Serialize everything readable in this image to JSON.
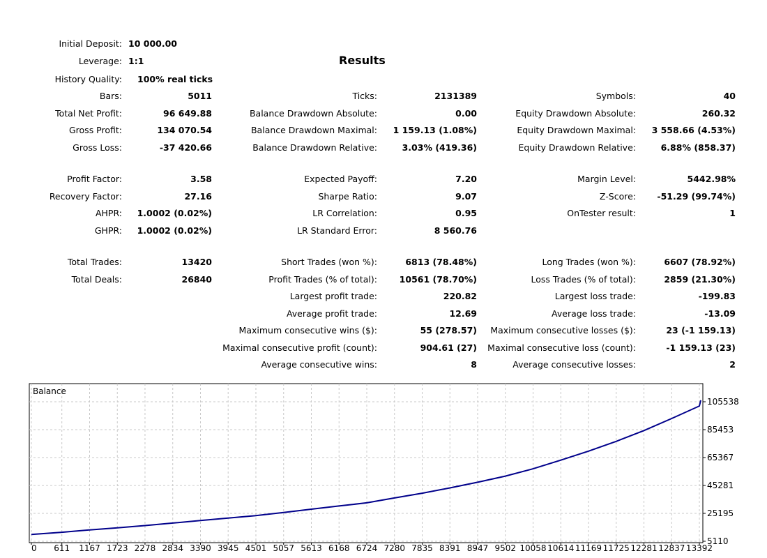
{
  "header": {
    "initial_deposit_label": "Initial Deposit:",
    "initial_deposit": "10 000.00",
    "leverage_label": "Leverage:",
    "leverage": "1:1",
    "history_quality_label": "History Quality:",
    "history_quality": "100% real ticks",
    "results_title": "Results"
  },
  "stats": {
    "bars_label": "Bars:",
    "bars": "5011",
    "ticks_label": "Ticks:",
    "ticks": "2131389",
    "symbols_label": "Symbols:",
    "symbols": "40",
    "net_profit_label": "Total Net Profit:",
    "net_profit": "96 649.88",
    "bal_dd_abs_label": "Balance Drawdown Absolute:",
    "bal_dd_abs": "0.00",
    "eq_dd_abs_label": "Equity Drawdown Absolute:",
    "eq_dd_abs": "260.32",
    "gross_profit_label": "Gross Profit:",
    "gross_profit": "134 070.54",
    "bal_dd_max_label": "Balance Drawdown Maximal:",
    "bal_dd_max": "1 159.13 (1.08%)",
    "eq_dd_max_label": "Equity Drawdown Maximal:",
    "eq_dd_max": "3 558.66 (4.53%)",
    "gross_loss_label": "Gross Loss:",
    "gross_loss": "-37 420.66",
    "bal_dd_rel_label": "Balance Drawdown Relative:",
    "bal_dd_rel": "3.03% (419.36)",
    "eq_dd_rel_label": "Equity Drawdown Relative:",
    "eq_dd_rel": "6.88% (858.37)",
    "profit_factor_label": "Profit Factor:",
    "profit_factor": "3.58",
    "expected_payoff_label": "Expected Payoff:",
    "expected_payoff": "7.20",
    "margin_level_label": "Margin Level:",
    "margin_level": "5442.98%",
    "recovery_factor_label": "Recovery Factor:",
    "recovery_factor": "27.16",
    "sharpe_label": "Sharpe Ratio:",
    "sharpe": "9.07",
    "zscore_label": "Z-Score:",
    "zscore": "-51.29 (99.74%)",
    "ahpr_label": "AHPR:",
    "ahpr": "1.0002 (0.02%)",
    "lr_corr_label": "LR Correlation:",
    "lr_corr": "0.95",
    "ontester_label": "OnTester result:",
    "ontester": "1",
    "ghpr_label": "GHPR:",
    "ghpr": "1.0002 (0.02%)",
    "lr_se_label": "LR Standard Error:",
    "lr_se": "8 560.76",
    "total_trades_label": "Total Trades:",
    "total_trades": "13420",
    "short_trades_label": "Short Trades (won %):",
    "short_trades": "6813 (78.48%)",
    "long_trades_label": "Long Trades (won %):",
    "long_trades": "6607 (78.92%)",
    "total_deals_label": "Total Deals:",
    "total_deals": "26840",
    "profit_trades_label": "Profit Trades (% of total):",
    "profit_trades": "10561 (78.70%)",
    "loss_trades_label": "Loss Trades (% of total):",
    "loss_trades": "2859 (21.30%)",
    "largest_profit_label": "Largest profit trade:",
    "largest_profit": "220.82",
    "largest_loss_label": "Largest loss trade:",
    "largest_loss": "-199.83",
    "avg_profit_label": "Average profit trade:",
    "avg_profit": "12.69",
    "avg_loss_label": "Average loss trade:",
    "avg_loss": "-13.09",
    "max_cons_wins_label": "Maximum consecutive wins ($):",
    "max_cons_wins": "55 (278.57)",
    "max_cons_losses_label": "Maximum consecutive losses ($):",
    "max_cons_losses": "23 (-1 159.13)",
    "maximal_cons_profit_label": "Maximal consecutive profit (count):",
    "maximal_cons_profit": "904.61 (27)",
    "maximal_cons_loss_label": "Maximal consecutive loss (count):",
    "maximal_cons_loss": "-1 159.13 (23)",
    "avg_cons_wins_label": "Average consecutive wins:",
    "avg_cons_wins": "8",
    "avg_cons_losses_label": "Average consecutive losses:",
    "avg_cons_losses": "2"
  },
  "chart_data": {
    "type": "line",
    "title": "Balance",
    "line_color": "#00008b",
    "grid": true,
    "x_ticks": [
      0,
      611,
      1167,
      1723,
      2278,
      2834,
      3390,
      3945,
      4501,
      5057,
      5613,
      6168,
      6724,
      7280,
      7835,
      8391,
      8947,
      9502,
      10058,
      10614,
      11169,
      11725,
      12281,
      12837,
      13392
    ],
    "y_ticks": [
      5110,
      25195,
      45281,
      65367,
      85453,
      105538
    ],
    "xlim": [
      0,
      13420
    ],
    "ylim": [
      5110,
      112000
    ],
    "series": [
      {
        "x": [
          0,
          611,
          1167,
          1723,
          2278,
          2834,
          3390,
          3945,
          4501,
          5057,
          5613,
          6168,
          6724,
          7280,
          7835,
          8391,
          8947,
          9502,
          10058,
          10614,
          11169,
          11725,
          12281,
          12837,
          13392,
          13420
        ],
        "values": [
          10000,
          11600,
          13300,
          14800,
          16400,
          18200,
          20000,
          21800,
          23600,
          25800,
          28200,
          30500,
          32800,
          36300,
          39700,
          43500,
          47600,
          52000,
          57300,
          63500,
          70000,
          77000,
          84800,
          93500,
          102500,
          106600
        ]
      }
    ]
  }
}
